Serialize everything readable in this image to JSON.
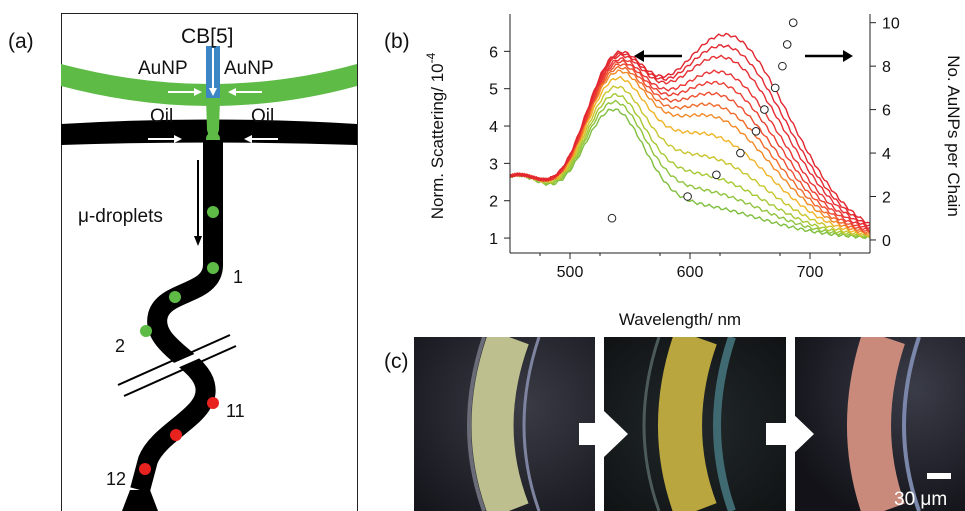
{
  "panel_a": {
    "label": "(a)",
    "cb5": "CB[5]",
    "aunp_left": "AuNP",
    "aunp_right": "AuNP",
    "oil_left": "Oil",
    "oil_right": "Oil",
    "droplets": "μ-droplets",
    "marker_1": "1",
    "marker_2": "2",
    "marker_11": "11",
    "marker_12": "12",
    "colors": {
      "aunp_channel": "#5dbb46",
      "cb5_channel": "#3c86c6",
      "oil_channel": "#000000",
      "droplet_green": "#5dbb46",
      "droplet_red": "#e8231f"
    }
  },
  "panel_b": {
    "label": "(b)"
  },
  "panel_c": {
    "label": "(c)",
    "scale_bar": "30 μm"
  },
  "chart_data": {
    "type": "line",
    "xlabel": "Wavelength/ nm",
    "ylabel": "Norm. Scattering/ 10",
    "ylabel_exp": "-4",
    "y2label": "No. AuNPs per Chain",
    "xlim": [
      450,
      750
    ],
    "ylim": [
      0.6,
      7.0
    ],
    "y2lim": [
      -0.6,
      10.4
    ],
    "xticks": [
      500,
      600,
      700
    ],
    "yticks": [
      1,
      2,
      3,
      4,
      5,
      6
    ],
    "y2ticks": [
      0,
      2,
      4,
      6,
      8,
      10
    ],
    "grid": false,
    "spectra_peak2": [
      2.3,
      2.7,
      3.1,
      3.6,
      4.2,
      4.7,
      5.0,
      5.3,
      5.6,
      5.9,
      6.3,
      6.6,
      6.9
    ],
    "spectra_colors": [
      "#7fbf3f",
      "#8fc43c",
      "#a6c935",
      "#c8c62d",
      "#f0b428",
      "#f28a28",
      "#f06a2c",
      "#ee4f30",
      "#ec3f33",
      "#e93535",
      "#e62e33",
      "#e42a31",
      "#e2262f"
    ],
    "scatter_series": {
      "x": [
        535,
        598,
        622,
        642,
        655,
        662,
        671,
        677,
        681,
        686
      ],
      "y": [
        1,
        2,
        3,
        4,
        5,
        6,
        7,
        8,
        9,
        10
      ]
    },
    "arrows": {
      "left": "points to left axis",
      "right": "points to right axis"
    }
  }
}
